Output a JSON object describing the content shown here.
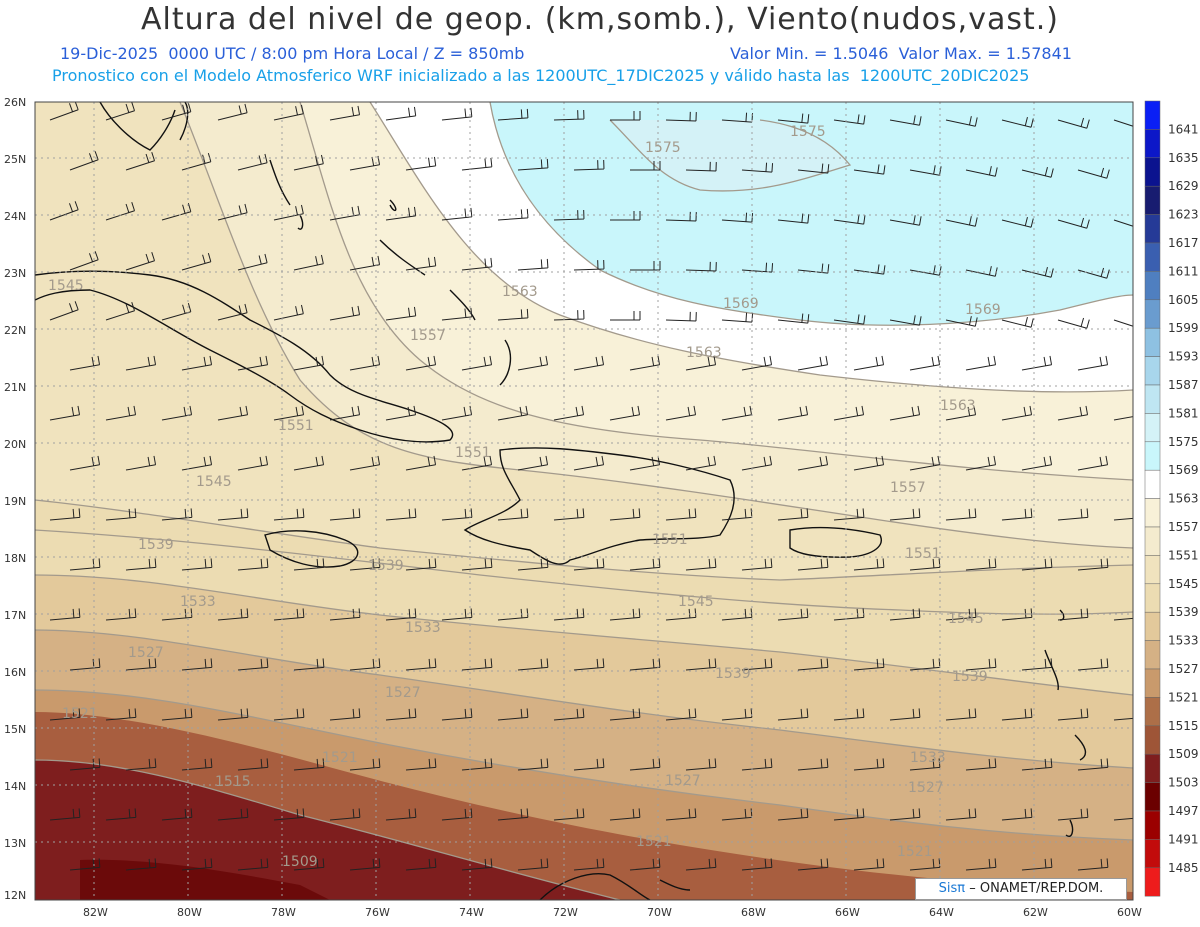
{
  "header": {
    "title": "Altura del nivel de geop. (km,somb.), Viento(nudos,vast.)",
    "line2_left": "19-Dic-2025  0000 UTC / 8:00 pm Hora Local / Z = 850mb",
    "line2_right": "Valor Min. = 1.5046  Valor Max. = 1.57841",
    "line3": "Pronostico con el Modelo Atmosferico WRF inicializado a las 1200UTC_17DIC2025 y válido hasta las  1200UTC_20DIC2025"
  },
  "map": {
    "lat_labels": [
      "26N",
      "25N",
      "24N",
      "23N",
      "22N",
      "21N",
      "20N",
      "19N",
      "18N",
      "17N",
      "16N",
      "15N",
      "14N",
      "13N",
      "12N"
    ],
    "lon_labels": [
      "82W",
      "80W",
      "78W",
      "76W",
      "74W",
      "72W",
      "70W",
      "68W",
      "66W",
      "64W",
      "62W",
      "60W"
    ],
    "contour_labels": [
      {
        "text": "1575"
      },
      {
        "text": "1575"
      },
      {
        "text": "1569"
      },
      {
        "text": "1569"
      },
      {
        "text": "1563"
      },
      {
        "text": "1563"
      },
      {
        "text": "1563"
      },
      {
        "text": "1545"
      },
      {
        "text": "1557"
      },
      {
        "text": "1551"
      },
      {
        "text": "1551"
      },
      {
        "text": "1557"
      },
      {
        "text": "1545"
      },
      {
        "text": "1539"
      },
      {
        "text": "1539"
      },
      {
        "text": "1551"
      },
      {
        "text": "1551"
      },
      {
        "text": "1545"
      },
      {
        "text": "1545"
      },
      {
        "text": "1533"
      },
      {
        "text": "1533"
      },
      {
        "text": "1527"
      },
      {
        "text": "1527"
      },
      {
        "text": "1539"
      },
      {
        "text": "1539"
      },
      {
        "text": "1521"
      },
      {
        "text": "1521"
      },
      {
        "text": "1527"
      },
      {
        "text": "1533"
      },
      {
        "text": "1515"
      },
      {
        "text": "1509"
      },
      {
        "text": "1527"
      },
      {
        "text": "1521"
      },
      {
        "text": "1521"
      }
    ]
  },
  "colorbar": {
    "levels": [
      {
        "label": "1641",
        "color": "#0a1ff5"
      },
      {
        "label": "1635",
        "color": "#0c17c8"
      },
      {
        "label": "1629",
        "color": "#0b138f"
      },
      {
        "label": "1623",
        "color": "#181c70"
      },
      {
        "label": "1617",
        "color": "#253a97"
      },
      {
        "label": "1611",
        "color": "#3a5fb0"
      },
      {
        "label": "1605",
        "color": "#4f7fc0"
      },
      {
        "label": "1599",
        "color": "#6a9ccf"
      },
      {
        "label": "1593",
        "color": "#8ec1e2"
      },
      {
        "label": "1587",
        "color": "#a8d6ec"
      },
      {
        "label": "1581",
        "color": "#bfe6f2"
      },
      {
        "label": "1575",
        "color": "#d4f2f7"
      },
      {
        "label": "1569",
        "color": "#c9f6fb"
      },
      {
        "label": "1563",
        "color": "#ffffff"
      },
      {
        "label": "1557",
        "color": "#f8f1d8"
      },
      {
        "label": "1551",
        "color": "#f4ebce"
      },
      {
        "label": "1545",
        "color": "#f0e3be"
      },
      {
        "label": "1539",
        "color": "#ecdcb2"
      },
      {
        "label": "1533",
        "color": "#e3c99b"
      },
      {
        "label": "1527",
        "color": "#d5b185"
      },
      {
        "label": "1521",
        "color": "#c99a6c"
      },
      {
        "label": "1515",
        "color": "#ad6f48"
      },
      {
        "label": "1509",
        "color": "#9e5537"
      },
      {
        "label": "1503",
        "color": "#7e1e1e"
      },
      {
        "label": "1497",
        "color": "#6b0000"
      },
      {
        "label": "1491",
        "color": "#9b0000"
      },
      {
        "label": "1485",
        "color": "#c20b0b"
      },
      {
        "label": "",
        "color": "#ee1c1c"
      }
    ]
  },
  "credit": {
    "brand": "Sisπ",
    "text": "– ONAMET/REP.DOM."
  }
}
